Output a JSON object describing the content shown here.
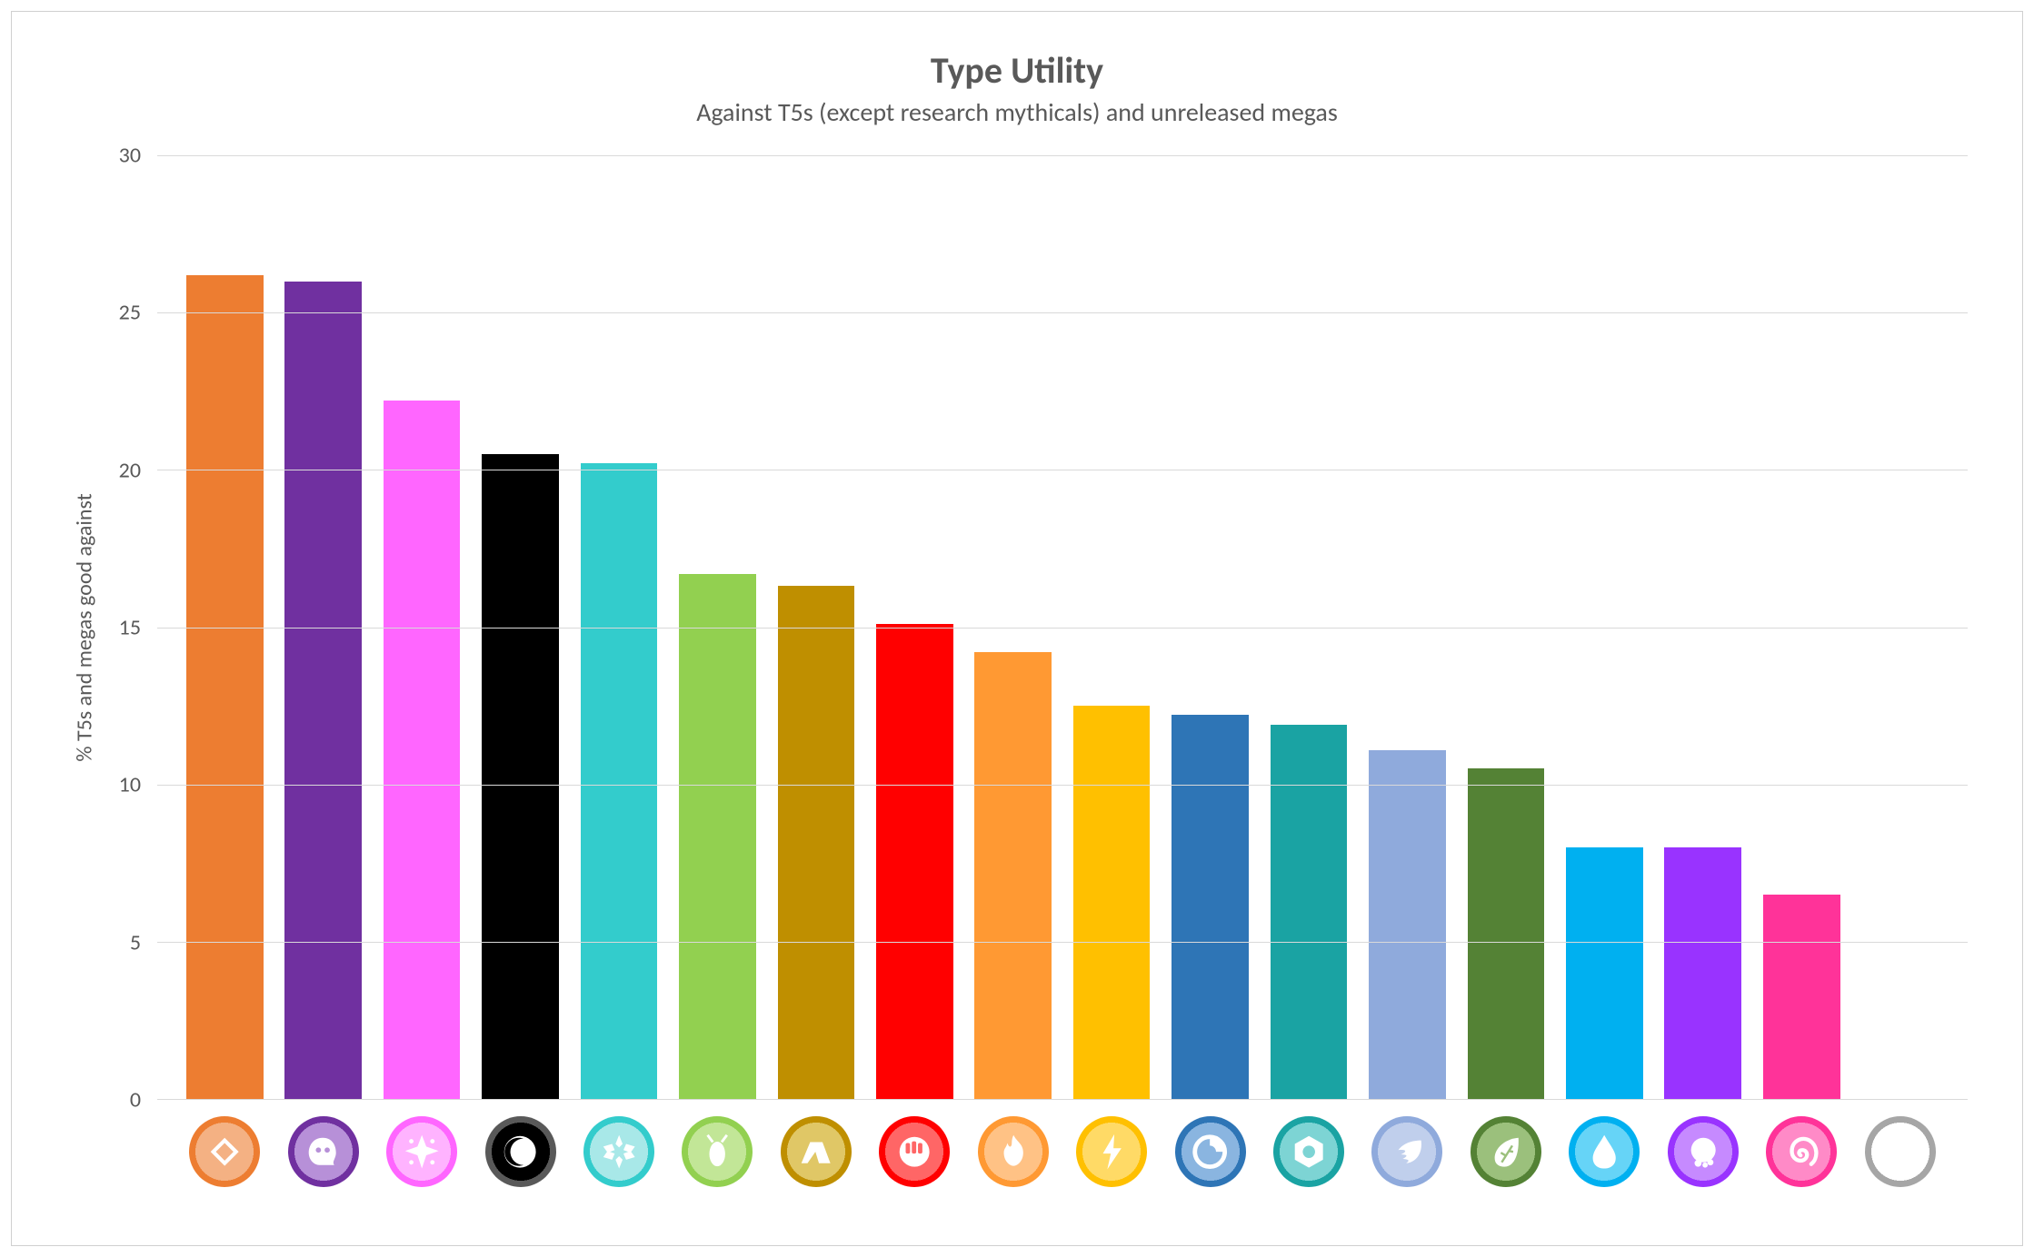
{
  "chart": {
    "type": "bar",
    "title": "Type Utility",
    "subtitle": "Against T5s (except research mythicals) and unreleased megas",
    "title_fontsize": 40,
    "subtitle_fontsize": 28,
    "title_color": "#595959",
    "ylabel": "% T5s and megas good against",
    "label_fontsize": 24,
    "ylim": [
      0,
      30
    ],
    "ytick_step": 5,
    "yticks": [
      0,
      5,
      10,
      15,
      20,
      25,
      30
    ],
    "background_color": "#ffffff",
    "grid_color": "#d9d9d9",
    "frame_border_color": "#d0d0d0",
    "bar_width": 0.78,
    "categories": [
      "rock",
      "ghost",
      "fairy",
      "dark",
      "ice",
      "bug",
      "ground",
      "fighting",
      "fire",
      "electric",
      "dragon",
      "steel",
      "flying",
      "grass",
      "water",
      "poison",
      "psychic",
      "normal"
    ],
    "values": [
      26.2,
      26.0,
      22.2,
      20.5,
      20.2,
      16.7,
      16.3,
      15.1,
      14.2,
      12.5,
      12.2,
      11.9,
      11.1,
      10.5,
      8.0,
      8.0,
      6.5,
      0
    ],
    "bar_colors": [
      "#ED7D31",
      "#7030A0",
      "#FF66FF",
      "#000000",
      "#33CCCC",
      "#92D050",
      "#BF8F00",
      "#FF0000",
      "#FF9933",
      "#FFC000",
      "#2E75B6",
      "#1AA3A3",
      "#8FAADC",
      "#548235",
      "#00B0F0",
      "#9933FF",
      "#FF3399",
      "#A6A6A6"
    ],
    "icon_circle_colors": [
      "#ED7D31",
      "#7030A0",
      "#FF66FF",
      "#595959",
      "#33CCCC",
      "#92D050",
      "#BF8F00",
      "#FF0000",
      "#FF9933",
      "#FFC000",
      "#2E75B6",
      "#1AA3A3",
      "#8FAADC",
      "#548235",
      "#00B0F0",
      "#9933FF",
      "#FF3399",
      "#A6A6A6"
    ],
    "icon_inner_colors": [
      "#F4B183",
      "#B790D8",
      "#FFB3FF",
      "#000000",
      "#A8E8E8",
      "#C2E697",
      "#E0C766",
      "#FF6666",
      "#FFC285",
      "#FFDA66",
      "#8AB5E0",
      "#7DD4D4",
      "#C0CFEC",
      "#9BC07C",
      "#66D4F7",
      "#C68AFF",
      "#FF8AC7",
      "#FFFFFF"
    ],
    "icon_glyph_color": "#FFFFFF"
  }
}
